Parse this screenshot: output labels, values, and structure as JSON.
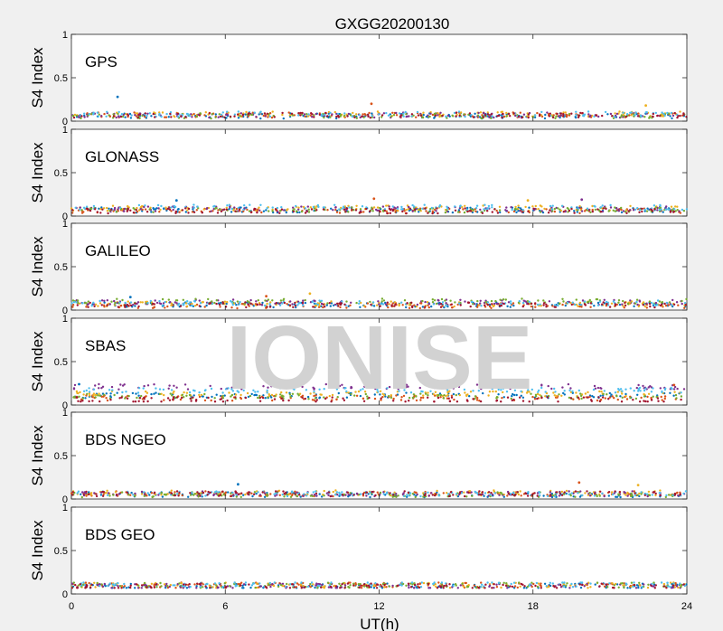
{
  "chart_data": {
    "type": "scatter",
    "title": "GXGG20200130",
    "xlabel": "UT(h)",
    "ylabel": "S4 Index",
    "xlim": [
      0,
      24
    ],
    "ylim": [
      0,
      1
    ],
    "xticks": [
      "0",
      "6",
      "12",
      "18",
      "24"
    ],
    "xtick_values": [
      0,
      6,
      12,
      18,
      24
    ],
    "yticks": [
      "0",
      "0.5",
      "1"
    ],
    "ytick_values": [
      0,
      0.5,
      1
    ],
    "watermark": "IONISE",
    "series_colors": [
      "#0072BD",
      "#D95319",
      "#EDB120",
      "#7E2F8E",
      "#77AC30",
      "#4DBEEE",
      "#A2142F"
    ],
    "panels": [
      {
        "label": "GPS",
        "typical_s4": [
          0.06,
          0.07,
          0.08,
          0.07,
          0.06,
          0.08,
          0.07
        ],
        "typical_range": [
          0.02,
          0.15
        ],
        "peaks": [
          {
            "x": 1.8,
            "y": 0.28
          },
          {
            "x": 11.7,
            "y": 0.2
          },
          {
            "x": 22.4,
            "y": 0.18
          }
        ]
      },
      {
        "label": "GLONASS",
        "typical_s4": [
          0.07,
          0.06,
          0.09,
          0.08,
          0.07,
          0.1,
          0.06
        ],
        "typical_range": [
          0.02,
          0.18
        ],
        "peaks": [
          {
            "x": 4.1,
            "y": 0.18
          },
          {
            "x": 11.8,
            "y": 0.2
          },
          {
            "x": 17.8,
            "y": 0.18
          },
          {
            "x": 19.9,
            "y": 0.19
          }
        ]
      },
      {
        "label": "GALILEO",
        "typical_s4": [
          0.06,
          0.05,
          0.07,
          0.09,
          0.1,
          0.08,
          0.06
        ],
        "typical_range": [
          0.02,
          0.15
        ],
        "peaks": [
          {
            "x": 2.3,
            "y": 0.15
          },
          {
            "x": 7.6,
            "y": 0.16
          },
          {
            "x": 9.3,
            "y": 0.19
          }
        ]
      },
      {
        "label": "SBAS",
        "typical_s4": [
          0.11,
          0.08,
          0.13,
          0.21,
          0.1,
          0.17,
          0.06
        ],
        "typical_range": [
          0.04,
          0.25
        ],
        "peaks": [
          {
            "x": 0.3,
            "y": 0.24
          },
          {
            "x": 23.5,
            "y": 0.23
          }
        ]
      },
      {
        "label": "BDS NGEO",
        "typical_s4": [
          0.05,
          0.06,
          0.07,
          0.06,
          0.05,
          0.06,
          0.06
        ],
        "typical_range": [
          0.02,
          0.14
        ],
        "peaks": [
          {
            "x": 6.5,
            "y": 0.17
          },
          {
            "x": 19.8,
            "y": 0.19
          },
          {
            "x": 22.1,
            "y": 0.16
          }
        ]
      },
      {
        "label": "BDS GEO",
        "typical_s4": [
          0.09,
          0.1,
          0.1,
          0.09,
          0.1,
          0.11,
          0.09
        ],
        "typical_range": [
          0.07,
          0.13
        ],
        "peaks": []
      }
    ]
  }
}
